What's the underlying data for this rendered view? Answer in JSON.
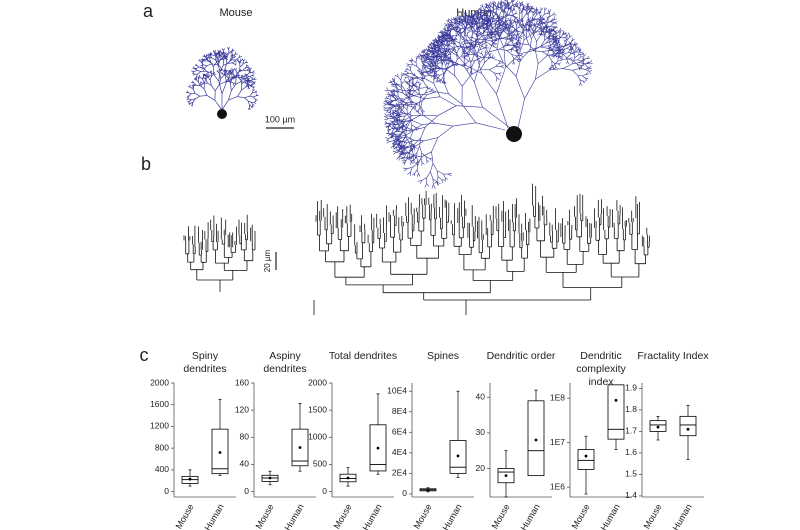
{
  "figure": {
    "panel_a": "a",
    "panel_b": "b",
    "panel_c": "c",
    "mouse_label": "Mouse",
    "human_label": "Human",
    "scale_a": "100 µm",
    "scale_b": "20 µm"
  },
  "chart_data": [
    {
      "type": "box",
      "title": "Spiny dendrites",
      "categories": [
        "Mouse",
        "Human"
      ],
      "color": "#000000",
      "boxes": [
        {
          "min": 100,
          "q1": 150,
          "median": 220,
          "q3": 280,
          "max": 400,
          "mean": 230
        },
        {
          "min": 300,
          "q1": 330,
          "median": 420,
          "q3": 1150,
          "max": 1700,
          "mean": 720
        }
      ],
      "ylim": [
        -100,
        2000
      ],
      "yticks": [
        0,
        400,
        800,
        1200,
        1600,
        2000
      ]
    },
    {
      "type": "box",
      "title": "Aspiny dendrites",
      "categories": [
        "Mouse",
        "Human"
      ],
      "color": "#000000",
      "boxes": [
        {
          "min": 10,
          "q1": 15,
          "median": 20,
          "q3": 24,
          "max": 30,
          "mean": 20
        },
        {
          "min": 30,
          "q1": 38,
          "median": 45,
          "q3": 92,
          "max": 130,
          "mean": 65
        }
      ],
      "ylim": [
        -8,
        160
      ],
      "yticks": [
        0,
        40,
        80,
        120,
        160
      ]
    },
    {
      "type": "box",
      "title": "Total dendrites",
      "categories": [
        "Mouse",
        "Human"
      ],
      "color": "#000000",
      "boxes": [
        {
          "min": 100,
          "q1": 180,
          "median": 240,
          "q3": 320,
          "max": 440,
          "mean": 250
        },
        {
          "min": 320,
          "q1": 380,
          "median": 500,
          "q3": 1230,
          "max": 1800,
          "mean": 800
        }
      ],
      "ylim": [
        -100,
        2000
      ],
      "yticks": [
        0,
        500,
        1000,
        1500,
        2000
      ]
    },
    {
      "type": "box",
      "title": "Spines",
      "categories": [
        "Mouse",
        "Human"
      ],
      "color": "#000000",
      "boxes": [
        {
          "min": 2000,
          "q1": 3000,
          "median": 4000,
          "q3": 5000,
          "max": 6000,
          "mean": 4000
        },
        {
          "min": 16000,
          "q1": 20000,
          "median": 26000,
          "q3": 52000,
          "max": 100000,
          "mean": 37000
        }
      ],
      "ylim": [
        -3000,
        108000
      ],
      "yticks": [
        0,
        {
          "value": 20000,
          "label": "2E4"
        },
        {
          "value": 40000,
          "label": "4E4"
        },
        {
          "value": 60000,
          "label": "6E4"
        },
        {
          "value": 80000,
          "label": "8E4"
        },
        {
          "value": 100000,
          "label": "10E4"
        }
      ]
    },
    {
      "type": "box",
      "title": "Dendritic order",
      "categories": [
        "Mouse",
        "Human"
      ],
      "color": "#000000",
      "boxes": [
        {
          "min": 12,
          "q1": 16,
          "median": 19,
          "q3": 20,
          "max": 25,
          "mean": 18
        },
        {
          "min": 18,
          "q1": 18,
          "median": 25,
          "q3": 39,
          "max": 42,
          "mean": 28
        }
      ],
      "ylim": [
        12,
        44
      ],
      "yticks": [
        20,
        30,
        40
      ]
    },
    {
      "type": "box",
      "title": "Dendritic complexity index",
      "categories": [
        "Mouse",
        "Human"
      ],
      "color": "#000000",
      "log_scale": true,
      "boxes": [
        {
          "min": 700000,
          "q1": 2500000,
          "median": 4000000,
          "q3": 7000000,
          "max": 14000000,
          "mean": 5000000
        },
        {
          "min": 7000000,
          "q1": 12000000,
          "median": 20000000,
          "q3": 200000000,
          "max": 200000000,
          "mean": 90000000
        }
      ],
      "ylim": [
        600000,
        220000000
      ],
      "yticks": [
        {
          "value": 1000000,
          "label": "1E6"
        },
        {
          "value": 10000000,
          "label": "1E7"
        },
        {
          "value": 100000000,
          "label": "1E8"
        }
      ]
    },
    {
      "type": "box",
      "title": "Fractality Index",
      "categories": [
        "Mouse",
        "Human"
      ],
      "color": "#000000",
      "boxes": [
        {
          "min": 1.66,
          "q1": 1.7,
          "median": 1.73,
          "q3": 1.75,
          "max": 1.77,
          "mean": 1.72
        },
        {
          "min": 1.57,
          "q1": 1.68,
          "median": 1.73,
          "q3": 1.77,
          "max": 1.82,
          "mean": 1.71
        }
      ],
      "ylim": [
        1.395,
        1.925
      ],
      "yticks": [
        1.4,
        1.5,
        1.6,
        1.7,
        1.8,
        1.9
      ]
    }
  ]
}
